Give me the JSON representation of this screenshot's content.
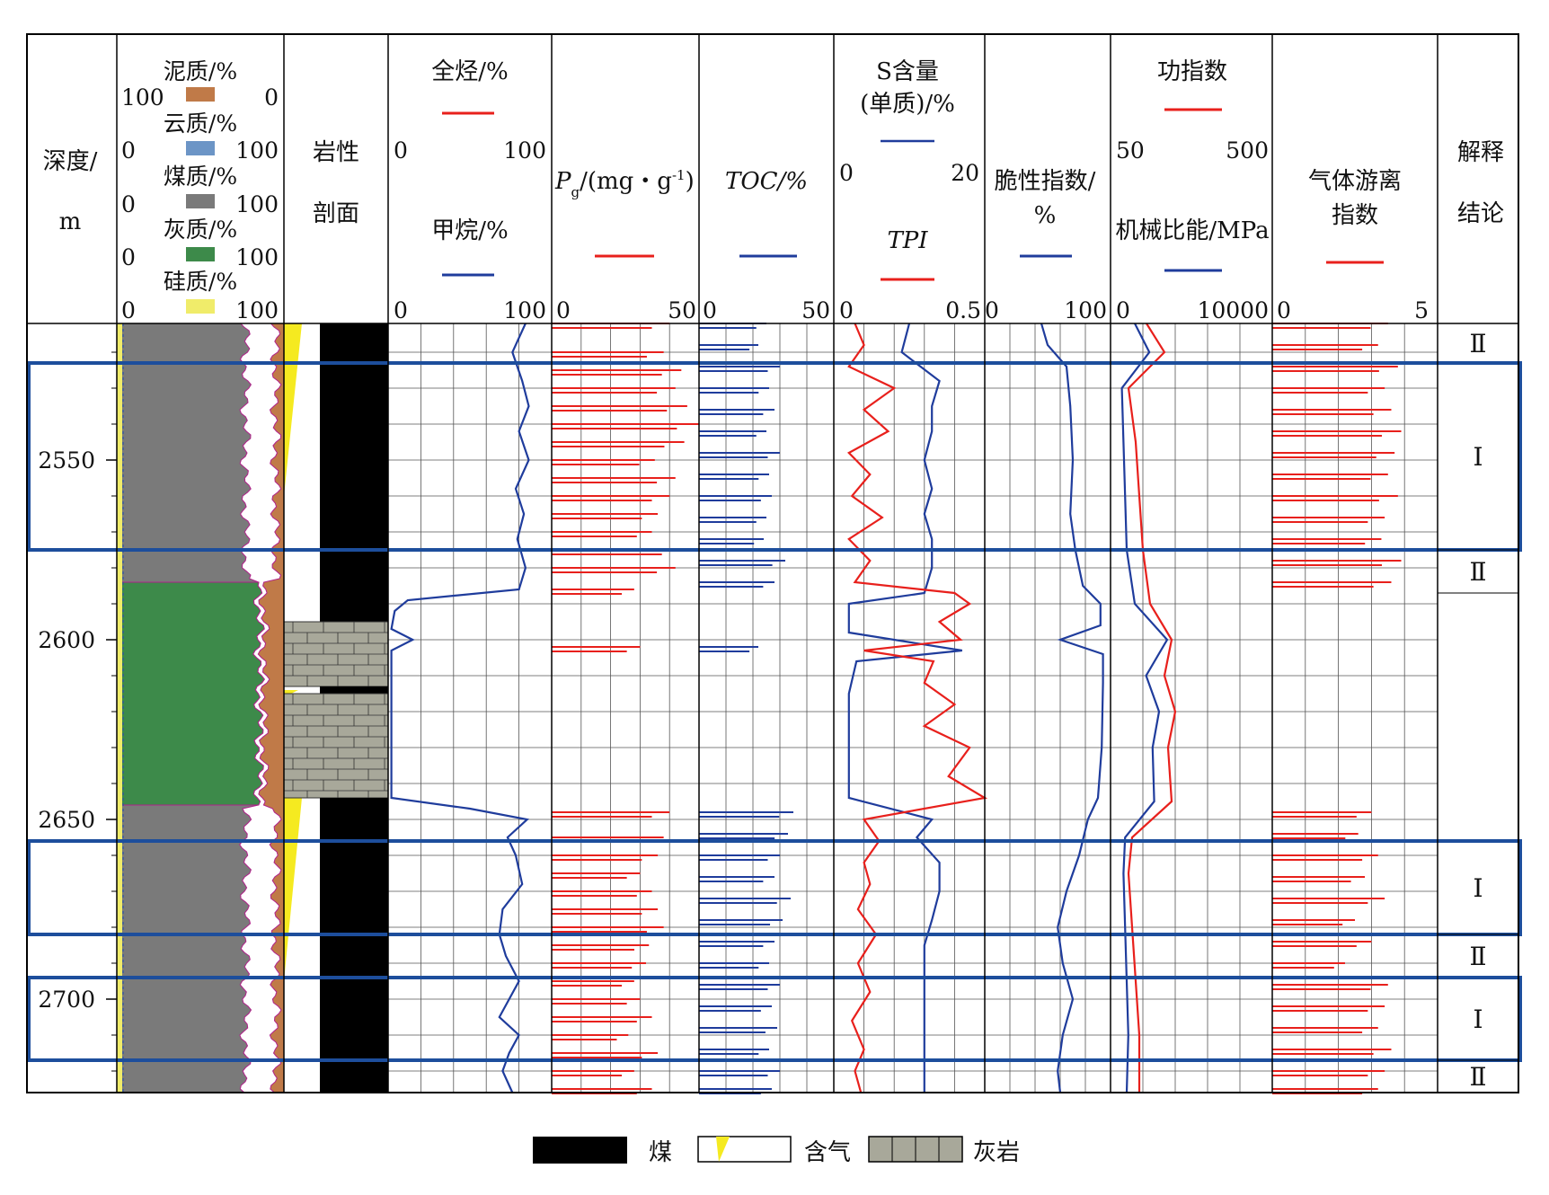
{
  "colors": {
    "red": "#e8201c",
    "blue": "#1f3c9c",
    "box": "#1d4e9c",
    "mud": "#c07a48",
    "dolo": "#6c95c6",
    "coal": "#7a7a7a",
    "lime": "#3d8a4a",
    "silic": "#f0ec6a",
    "gas": "#f5ea20",
    "limestone": "#a8a89a"
  },
  "headers": {
    "depth": [
      "深度/",
      "m"
    ],
    "lith_comp": [
      {
        "label": "泥质/%",
        "left": "100",
        "right": "0"
      },
      {
        "label": "云质/%",
        "left": "0",
        "right": "100"
      },
      {
        "label": "煤质/%",
        "left": "0",
        "right": "100"
      },
      {
        "label": "灰质/%",
        "left": "0",
        "right": "100"
      },
      {
        "label": "硅质/%",
        "left": "0",
        "right": "100"
      }
    ],
    "profile": [
      "岩性",
      "剖面"
    ],
    "gas": {
      "line1": "全烃/%",
      "line2": "甲烷/%",
      "l1min": "0",
      "l1max": "100",
      "l2min": "0",
      "l2max": "100"
    },
    "pg": {
      "p": "P",
      "sub": "g",
      "rest": "/(mg・g",
      "sup": "-1",
      "close": ")",
      "min": "0",
      "max": "50"
    },
    "toc": {
      "label": "TOC/%",
      "min": "0",
      "max": "50"
    },
    "s": {
      "line1a": "S含量",
      "line1b": "(单质)/%",
      "line2": "TPI",
      "l1min": "0",
      "l1max": "20",
      "l2min": "0",
      "l2max": "0.5"
    },
    "brittle": {
      "line1": "脆性指数/",
      "line2": "%",
      "min": "0",
      "max": "100"
    },
    "work": {
      "line1": "功指数",
      "line2": "机械比能/MPa",
      "l1min": "50",
      "l1max": "500",
      "l2min": "0",
      "l2max": "10000"
    },
    "gasfree": {
      "line1": "气体游离",
      "line2": "指数",
      "min": "0",
      "max": "5"
    },
    "concl": [
      "解释",
      "结论"
    ]
  },
  "legend": {
    "coal": "煤",
    "gas": "含气",
    "limestone": "灰岩"
  },
  "chart_data": {
    "type": "well-log",
    "depth_axis": {
      "label": "深度/m",
      "range": [
        2512,
        2726
      ],
      "ticks": [
        2550,
        2600,
        2650,
        2700
      ]
    },
    "intervals": [
      {
        "top": 2512,
        "bottom": 2523,
        "label": "Ⅱ"
      },
      {
        "top": 2523,
        "bottom": 2575,
        "label": "Ⅰ",
        "boxed": true
      },
      {
        "top": 2575,
        "bottom": 2587,
        "label": "Ⅱ"
      },
      {
        "top": 2587,
        "bottom": 2656,
        "label": ""
      },
      {
        "top": 2656,
        "bottom": 2682,
        "label": "Ⅰ",
        "boxed": true
      },
      {
        "top": 2682,
        "bottom": 2694,
        "label": "Ⅱ"
      },
      {
        "top": 2694,
        "bottom": 2717,
        "label": "Ⅰ",
        "boxed": true
      },
      {
        "top": 2717,
        "bottom": 2726,
        "label": "Ⅱ"
      }
    ],
    "lithology": [
      {
        "top": 2512,
        "bottom": 2595,
        "type": "煤"
      },
      {
        "top": 2595,
        "bottom": 2613,
        "type": "灰岩"
      },
      {
        "top": 2613,
        "bottom": 2615,
        "type": "煤"
      },
      {
        "top": 2615,
        "bottom": 2644,
        "type": "灰岩"
      },
      {
        "top": 2644,
        "bottom": 2726,
        "type": "煤"
      }
    ],
    "quantity_scales": {
      "全烃": [
        0,
        100
      ],
      "甲烷": [
        0,
        100
      ],
      "Pg": [
        0,
        50
      ],
      "TOC": [
        0,
        50
      ],
      "S含量": [
        0,
        20
      ],
      "TPI": [
        0,
        0.5
      ],
      "脆性指数": [
        0,
        100
      ],
      "功指数": [
        50,
        500
      ],
      "机械比能": [
        0,
        10000
      ],
      "气体游离指数": [
        0,
        5
      ]
    },
    "series": [
      {
        "name": "甲烷",
        "depth": [
          2512,
          2520,
          2528,
          2535,
          2542,
          2550,
          2558,
          2565,
          2572,
          2580,
          2586,
          2589,
          2592,
          2597,
          2600,
          2603,
          2610,
          2620,
          2630,
          2644,
          2647,
          2650,
          2655,
          2660,
          2668,
          2675,
          2682,
          2688,
          2695,
          2700,
          2705,
          2710,
          2715,
          2720,
          2726
        ],
        "values": [
          84,
          76,
          82,
          86,
          80,
          86,
          78,
          83,
          79,
          84,
          80,
          12,
          4,
          2,
          15,
          2,
          2,
          2,
          2,
          2,
          50,
          85,
          73,
          78,
          82,
          70,
          68,
          72,
          80,
          74,
          68,
          80,
          74,
          70,
          76
        ]
      },
      {
        "name": "Pg",
        "depth": [
          2512,
          2520,
          2525,
          2530,
          2535,
          2540,
          2545,
          2550,
          2555,
          2560,
          2565,
          2570,
          2575,
          2580,
          2586,
          2602,
          2648,
          2655,
          2660,
          2665,
          2670,
          2675,
          2680,
          2685,
          2690,
          2695,
          2700,
          2705,
          2710,
          2715,
          2720,
          2725
        ],
        "values": [
          40,
          38,
          44,
          42,
          46,
          50,
          45,
          35,
          42,
          40,
          36,
          34,
          44,
          42,
          28,
          30,
          40,
          38,
          36,
          30,
          34,
          36,
          38,
          33,
          32,
          28,
          30,
          34,
          26,
          36,
          28,
          34
        ]
      },
      {
        "name": "TOC",
        "depth": [
          2512,
          2518,
          2524,
          2530,
          2536,
          2542,
          2548,
          2554,
          2560,
          2566,
          2572,
          2578,
          2584,
          2602,
          2648,
          2654,
          2660,
          2666,
          2672,
          2678,
          2684,
          2690,
          2696,
          2702,
          2708,
          2714,
          2720,
          2725
        ],
        "values": [
          25,
          22,
          30,
          26,
          28,
          25,
          30,
          26,
          27,
          25,
          24,
          32,
          28,
          22,
          35,
          33,
          30,
          28,
          34,
          31,
          28,
          26,
          30,
          27,
          29,
          26,
          30,
          27
        ]
      },
      {
        "name": "S含量",
        "depth": [
          2512,
          2520,
          2528,
          2535,
          2542,
          2550,
          2558,
          2565,
          2572,
          2580,
          2587,
          2590,
          2598,
          2603,
          2606,
          2615,
          2625,
          2635,
          2644,
          2650,
          2655,
          2662,
          2670,
          2678,
          2685,
          2692,
          2700,
          2708,
          2715,
          2720,
          2726
        ],
        "values": [
          10,
          9,
          14,
          13,
          13,
          12,
          13,
          12,
          13,
          13,
          12,
          2,
          2,
          17,
          3,
          2,
          2,
          2,
          2,
          13,
          11,
          14,
          14,
          13,
          12,
          12,
          12,
          12,
          12,
          12,
          12
        ]
      },
      {
        "name": "TPI",
        "depth": [
          2512,
          2518,
          2524,
          2530,
          2536,
          2542,
          2548,
          2554,
          2560,
          2566,
          2572,
          2578,
          2584,
          2587,
          2590,
          2595,
          2600,
          2603,
          2606,
          2612,
          2618,
          2624,
          2630,
          2638,
          2644,
          2650,
          2656,
          2662,
          2668,
          2675,
          2682,
          2690,
          2698,
          2706,
          2714,
          2720,
          2726
        ],
        "values": [
          0.07,
          0.1,
          0.05,
          0.2,
          0.1,
          0.18,
          0.05,
          0.12,
          0.06,
          0.16,
          0.05,
          0.12,
          0.07,
          0.4,
          0.45,
          0.35,
          0.42,
          0.1,
          0.33,
          0.3,
          0.4,
          0.3,
          0.45,
          0.38,
          0.5,
          0.1,
          0.15,
          0.1,
          0.12,
          0.08,
          0.14,
          0.08,
          0.12,
          0.06,
          0.1,
          0.07,
          0.09
        ]
      },
      {
        "name": "脆性指数",
        "depth": [
          2512,
          2518,
          2524,
          2535,
          2550,
          2565,
          2575,
          2585,
          2590,
          2596,
          2600,
          2604,
          2612,
          2630,
          2644,
          2650,
          2660,
          2670,
          2680,
          2690,
          2700,
          2710,
          2720,
          2726
        ],
        "values": [
          45,
          50,
          65,
          68,
          70,
          68,
          72,
          78,
          92,
          92,
          60,
          94,
          94,
          93,
          90,
          82,
          75,
          65,
          58,
          62,
          70,
          62,
          58,
          60
        ]
      },
      {
        "name": "功指数",
        "depth": [
          2512,
          2520,
          2530,
          2545,
          2560,
          2575,
          2590,
          2600,
          2610,
          2620,
          2630,
          2645,
          2655,
          2665,
          2680,
          2695,
          2710,
          2726
        ],
        "values": [
          150,
          200,
          100,
          120,
          130,
          140,
          160,
          220,
          200,
          230,
          210,
          220,
          110,
          100,
          110,
          120,
          130,
          130
        ]
      },
      {
        "name": "机械比能",
        "depth": [
          2512,
          2520,
          2530,
          2545,
          2560,
          2575,
          2590,
          2600,
          2610,
          2620,
          2630,
          2645,
          2655,
          2665,
          2680,
          2695,
          2710,
          2726
        ],
        "values": [
          1500,
          2400,
          700,
          800,
          900,
          1000,
          1500,
          3500,
          2200,
          3000,
          2600,
          2700,
          900,
          800,
          900,
          1000,
          1100,
          1000
        ]
      },
      {
        "name": "气体游离指数",
        "depth": [
          2512,
          2518,
          2524,
          2530,
          2536,
          2542,
          2548,
          2554,
          2560,
          2566,
          2572,
          2578,
          2584,
          2648,
          2654,
          2660,
          2666,
          2672,
          2678,
          2684,
          2690,
          2696,
          2702,
          2708,
          2714,
          2720,
          2725
        ],
        "values": [
          3.5,
          3.2,
          3.8,
          3.4,
          3.6,
          3.9,
          3.7,
          3.5,
          3.8,
          3.4,
          3.3,
          3.9,
          3.6,
          3.0,
          2.6,
          3.2,
          2.8,
          3.4,
          2.5,
          3.0,
          2.2,
          3.5,
          3.4,
          3.2,
          3.6,
          3.4,
          3.2
        ]
      }
    ]
  }
}
